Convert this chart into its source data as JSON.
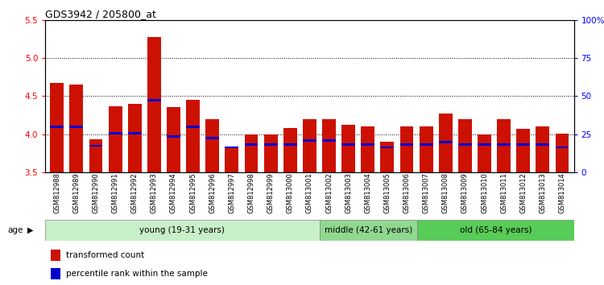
{
  "title": "GDS3942 / 205800_at",
  "samples": [
    "GSM812988",
    "GSM812989",
    "GSM812990",
    "GSM812991",
    "GSM812992",
    "GSM812993",
    "GSM812994",
    "GSM812995",
    "GSM812996",
    "GSM812997",
    "GSM812998",
    "GSM812999",
    "GSM813000",
    "GSM813001",
    "GSM813002",
    "GSM813003",
    "GSM813004",
    "GSM813005",
    "GSM813006",
    "GSM813007",
    "GSM813008",
    "GSM813009",
    "GSM813010",
    "GSM813011",
    "GSM813012",
    "GSM813013",
    "GSM813014"
  ],
  "red_values": [
    4.67,
    4.65,
    3.93,
    4.37,
    4.4,
    5.28,
    4.36,
    4.45,
    4.2,
    3.83,
    4.0,
    4.0,
    4.08,
    4.2,
    4.2,
    4.13,
    4.1,
    3.9,
    4.1,
    4.1,
    4.27,
    4.2,
    4.0,
    4.2,
    4.07,
    4.1,
    4.01
  ],
  "blue_values": [
    4.1,
    4.1,
    3.85,
    4.01,
    4.01,
    4.45,
    3.97,
    4.1,
    3.95,
    3.83,
    3.87,
    3.87,
    3.87,
    3.92,
    3.92,
    3.87,
    3.87,
    3.83,
    3.87,
    3.87,
    3.9,
    3.87,
    3.87,
    3.87,
    3.87,
    3.87,
    3.83
  ],
  "ylim": [
    3.5,
    5.5
  ],
  "yticks_left": [
    3.5,
    4.0,
    4.5,
    5.0,
    5.5
  ],
  "yticks_right": [
    0,
    25,
    50,
    75,
    100
  ],
  "ytick_labels_right": [
    "0",
    "25",
    "50",
    "75",
    "100%"
  ],
  "age_groups": [
    {
      "label": "young (19-31 years)",
      "start": 0,
      "end": 14,
      "color": "#c8f0c8"
    },
    {
      "label": "middle (42-61 years)",
      "start": 14,
      "end": 19,
      "color": "#90d890"
    },
    {
      "label": "old (65-84 years)",
      "start": 19,
      "end": 27,
      "color": "#58cc58"
    }
  ],
  "bar_color": "#cc1100",
  "blue_color": "#0000cc",
  "legend_items": [
    {
      "color": "#cc1100",
      "label": "transformed count"
    },
    {
      "color": "#0000cc",
      "label": "percentile rank within the sample"
    }
  ]
}
